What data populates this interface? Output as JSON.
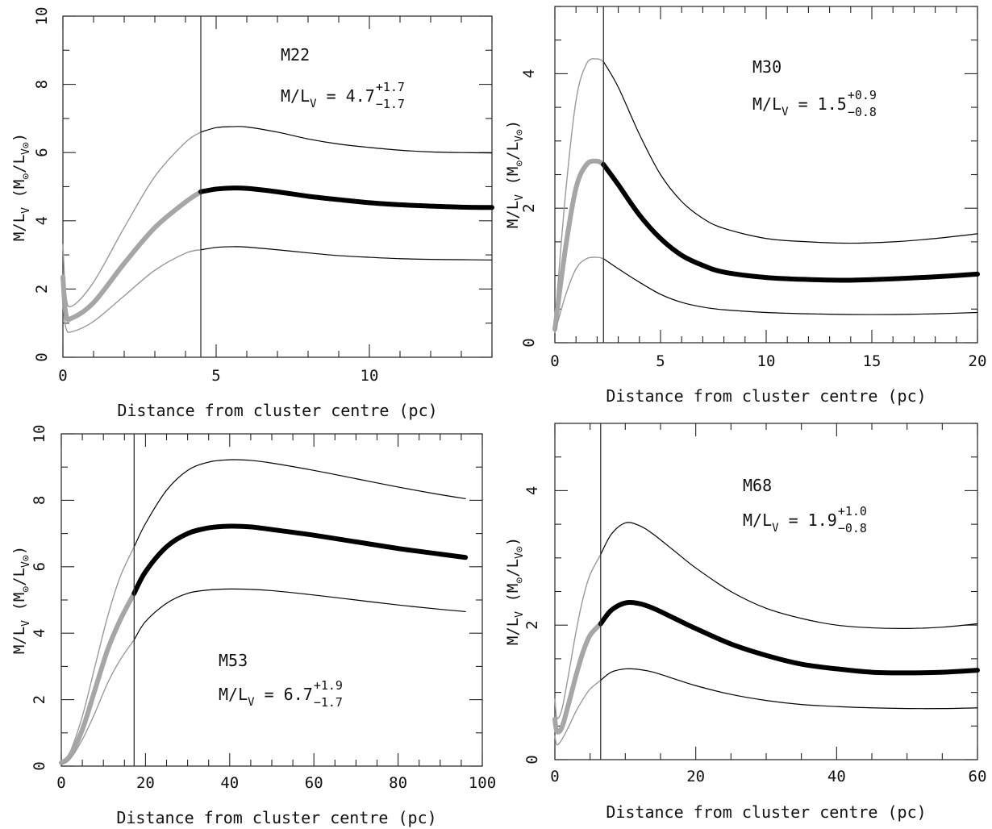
{
  "chart_data": [
    {
      "type": "line",
      "cluster": "M22",
      "ml_label": {
        "base": "M/L",
        "sub": "V",
        "eq": "=",
        "value": "4.7",
        "plus": "+1.7",
        "minus": "−1.7"
      },
      "xlabel": "Distance from cluster centre (pc)",
      "ylabel": {
        "main": "M/L",
        "main_sub": "V",
        "unit_open": "(M",
        "unit_sun": "⊙",
        "slash": "/L",
        "unit_sub": "V⊙",
        "unit_close": ")"
      },
      "xlim": [
        0,
        14
      ],
      "ylim": [
        0,
        10
      ],
      "xticks": [
        0,
        5,
        10
      ],
      "yticks": [
        0,
        2,
        4,
        6,
        8,
        10
      ],
      "xminor": 1,
      "yminor": 1,
      "xticklabels": [
        "0",
        "5",
        "10"
      ],
      "yticklabels": [
        "0",
        "2",
        "4",
        "6",
        "8",
        "10"
      ],
      "vline": 4.5,
      "series": [
        {
          "role": "upper",
          "x": [
            0.0,
            0.1,
            0.3,
            1.0,
            2.0,
            3.0,
            4.0,
            4.5,
            5.0,
            5.5,
            6.0,
            7.0,
            8.0,
            9.0,
            10.0,
            11.0,
            12.0,
            13.0,
            14.0
          ],
          "y": [
            3.3,
            1.8,
            1.5,
            2.2,
            3.8,
            5.3,
            6.3,
            6.6,
            6.73,
            6.76,
            6.75,
            6.6,
            6.4,
            6.25,
            6.15,
            6.07,
            6.02,
            6.0,
            5.99
          ]
        },
        {
          "role": "best",
          "x": [
            0.0,
            0.1,
            0.3,
            1.0,
            2.0,
            3.0,
            4.0,
            4.5,
            5.0,
            5.5,
            6.0,
            7.0,
            8.0,
            9.0,
            10.0,
            11.0,
            12.0,
            13.0,
            14.0
          ],
          "y": [
            2.35,
            1.25,
            1.15,
            1.6,
            2.75,
            3.8,
            4.55,
            4.85,
            4.93,
            4.96,
            4.95,
            4.85,
            4.72,
            4.62,
            4.53,
            4.47,
            4.43,
            4.4,
            4.39
          ]
        },
        {
          "role": "lower",
          "x": [
            0.0,
            0.1,
            0.3,
            1.0,
            2.0,
            3.0,
            4.0,
            4.5,
            5.0,
            5.5,
            6.0,
            7.0,
            8.0,
            9.0,
            10.0,
            11.0,
            12.0,
            13.0,
            14.0
          ],
          "y": [
            1.6,
            0.85,
            0.75,
            1.05,
            1.8,
            2.55,
            3.05,
            3.15,
            3.22,
            3.24,
            3.23,
            3.15,
            3.06,
            2.98,
            2.93,
            2.89,
            2.87,
            2.86,
            2.85
          ]
        }
      ]
    },
    {
      "type": "line",
      "cluster": "M30",
      "ml_label": {
        "base": "M/L",
        "sub": "V",
        "eq": "=",
        "value": "1.5",
        "plus": "+0.9",
        "minus": "−0.8"
      },
      "xlabel": "Distance from cluster centre (pc)",
      "ylabel": {
        "main": "M/L",
        "main_sub": "V",
        "unit_open": "(M",
        "unit_sun": "⊙",
        "slash": "/L",
        "unit_sub": "V⊙",
        "unit_close": ")"
      },
      "xlim": [
        0,
        20
      ],
      "ylim": [
        0,
        5
      ],
      "xticks": [
        0,
        5,
        10,
        15,
        20
      ],
      "yticks": [
        0,
        2,
        4
      ],
      "xminor": 1,
      "yminor": 0.5,
      "xticklabels": [
        "0",
        "5",
        "10",
        "15",
        "20"
      ],
      "yticklabels": [
        "0",
        "2",
        "4"
      ],
      "vline": 2.3,
      "series": [
        {
          "role": "upper",
          "x": [
            0.0,
            0.5,
            1.0,
            1.5,
            2.0,
            2.3,
            3.0,
            4.0,
            5.0,
            6.0,
            7.0,
            8.0,
            10.0,
            12.0,
            14.0,
            16.0,
            18.0,
            20.0
          ],
          "y": [
            0.3,
            2.2,
            3.6,
            4.15,
            4.22,
            4.18,
            3.8,
            3.1,
            2.5,
            2.1,
            1.85,
            1.7,
            1.55,
            1.5,
            1.48,
            1.5,
            1.55,
            1.62
          ]
        },
        {
          "role": "best",
          "x": [
            0.0,
            0.5,
            1.0,
            1.5,
            2.0,
            2.3,
            3.0,
            4.0,
            5.0,
            6.0,
            7.0,
            8.0,
            10.0,
            12.0,
            14.0,
            16.0,
            18.0,
            20.0
          ],
          "y": [
            0.2,
            1.4,
            2.3,
            2.65,
            2.7,
            2.65,
            2.35,
            1.9,
            1.55,
            1.3,
            1.15,
            1.05,
            0.97,
            0.94,
            0.93,
            0.95,
            0.98,
            1.02
          ]
        },
        {
          "role": "lower",
          "x": [
            0.0,
            0.5,
            1.0,
            1.5,
            2.0,
            2.3,
            3.0,
            4.0,
            5.0,
            6.0,
            7.0,
            8.0,
            10.0,
            12.0,
            14.0,
            16.0,
            18.0,
            20.0
          ],
          "y": [
            0.15,
            0.7,
            1.1,
            1.25,
            1.27,
            1.25,
            1.1,
            0.9,
            0.72,
            0.6,
            0.53,
            0.49,
            0.45,
            0.43,
            0.42,
            0.42,
            0.43,
            0.45
          ]
        }
      ]
    },
    {
      "type": "line",
      "cluster": "M53",
      "ml_label": {
        "base": "M/L",
        "sub": "V",
        "eq": "=",
        "value": "6.7",
        "plus": "+1.9",
        "minus": "−1.7"
      },
      "xlabel": "Distance from cluster centre (pc)",
      "ylabel": {
        "main": "M/L",
        "main_sub": "V",
        "unit_open": "(M",
        "unit_sun": "⊙",
        "slash": "/L",
        "unit_sub": "V⊙",
        "unit_close": ")"
      },
      "xlim": [
        0,
        100
      ],
      "ylim": [
        0,
        10
      ],
      "xticks": [
        0,
        20,
        40,
        60,
        80,
        100
      ],
      "yticks": [
        0,
        2,
        4,
        6,
        8,
        10
      ],
      "xminor": 5,
      "yminor": 1,
      "xticklabels": [
        "0",
        "20",
        "40",
        "60",
        "80",
        "100"
      ],
      "yticklabels": [
        "0",
        "2",
        "4",
        "6",
        "8",
        "10"
      ],
      "vline": 17.3,
      "series": [
        {
          "role": "upper",
          "x": [
            0,
            2,
            5,
            8,
            11,
            14,
            17.3,
            20,
            25,
            30,
            35,
            40,
            45,
            50,
            60,
            70,
            80,
            90,
            96
          ],
          "y": [
            0.1,
            0.4,
            1.5,
            3.0,
            4.5,
            5.7,
            6.6,
            7.3,
            8.3,
            8.9,
            9.15,
            9.22,
            9.2,
            9.12,
            8.9,
            8.65,
            8.4,
            8.17,
            8.05
          ]
        },
        {
          "role": "best",
          "x": [
            0,
            2,
            5,
            8,
            11,
            14,
            17.3,
            20,
            25,
            30,
            35,
            40,
            45,
            50,
            60,
            70,
            80,
            90,
            96
          ],
          "y": [
            0.1,
            0.3,
            1.1,
            2.3,
            3.5,
            4.4,
            5.2,
            5.85,
            6.6,
            7.0,
            7.17,
            7.22,
            7.2,
            7.12,
            6.95,
            6.75,
            6.55,
            6.38,
            6.28
          ]
        },
        {
          "role": "lower",
          "x": [
            0,
            2,
            5,
            8,
            11,
            14,
            17.3,
            20,
            25,
            30,
            35,
            40,
            45,
            50,
            60,
            70,
            80,
            90,
            96
          ],
          "y": [
            0.05,
            0.2,
            0.8,
            1.6,
            2.5,
            3.2,
            3.8,
            4.35,
            4.9,
            5.2,
            5.3,
            5.33,
            5.32,
            5.28,
            5.15,
            5.0,
            4.85,
            4.72,
            4.65
          ]
        }
      ]
    },
    {
      "type": "line",
      "cluster": "M68",
      "ml_label": {
        "base": "M/L",
        "sub": "V",
        "eq": "=",
        "value": "1.9",
        "plus": "+1.0",
        "minus": "−0.8"
      },
      "xlabel": "Distance from cluster centre (pc)",
      "ylabel": {
        "main": "M/L",
        "main_sub": "V",
        "unit_open": "(M",
        "unit_sun": "⊙",
        "slash": "/L",
        "unit_sub": "V⊙",
        "unit_close": ")"
      },
      "xlim": [
        0,
        60
      ],
      "ylim": [
        0,
        5
      ],
      "xticks": [
        0,
        20,
        40,
        60
      ],
      "yticks": [
        0,
        2,
        4
      ],
      "xminor": 5,
      "yminor": 0.5,
      "xticklabels": [
        "0",
        "20",
        "40",
        "60"
      ],
      "yticklabels": [
        "0",
        "2",
        "4"
      ],
      "vline": 6.5,
      "series": [
        {
          "role": "upper",
          "x": [
            0,
            0.3,
            1,
            2,
            3,
            4,
            5,
            6.5,
            8,
            10,
            12,
            14,
            17,
            20,
            25,
            30,
            35,
            40,
            45,
            50,
            55,
            60
          ],
          "y": [
            0.9,
            0.62,
            0.75,
            1.3,
            1.9,
            2.4,
            2.75,
            3.05,
            3.35,
            3.52,
            3.48,
            3.35,
            3.1,
            2.85,
            2.5,
            2.25,
            2.1,
            2.0,
            1.96,
            1.95,
            1.97,
            2.02
          ]
        },
        {
          "role": "best",
          "x": [
            0,
            0.3,
            1,
            2,
            3,
            4,
            5,
            6.5,
            8,
            10,
            12,
            14,
            17,
            20,
            25,
            30,
            35,
            40,
            45,
            50,
            55,
            60
          ],
          "y": [
            0.6,
            0.42,
            0.48,
            0.85,
            1.25,
            1.6,
            1.85,
            2.02,
            2.22,
            2.33,
            2.32,
            2.25,
            2.1,
            1.95,
            1.72,
            1.55,
            1.42,
            1.35,
            1.3,
            1.29,
            1.3,
            1.33
          ]
        },
        {
          "role": "lower",
          "x": [
            0,
            0.3,
            1,
            2,
            3,
            4,
            5,
            6.5,
            8,
            10,
            12,
            14,
            17,
            20,
            25,
            30,
            35,
            40,
            45,
            50,
            55,
            60
          ],
          "y": [
            0.35,
            0.22,
            0.3,
            0.5,
            0.72,
            0.9,
            1.05,
            1.18,
            1.3,
            1.35,
            1.34,
            1.3,
            1.2,
            1.1,
            0.97,
            0.88,
            0.82,
            0.79,
            0.77,
            0.76,
            0.76,
            0.77
          ]
        }
      ]
    }
  ]
}
